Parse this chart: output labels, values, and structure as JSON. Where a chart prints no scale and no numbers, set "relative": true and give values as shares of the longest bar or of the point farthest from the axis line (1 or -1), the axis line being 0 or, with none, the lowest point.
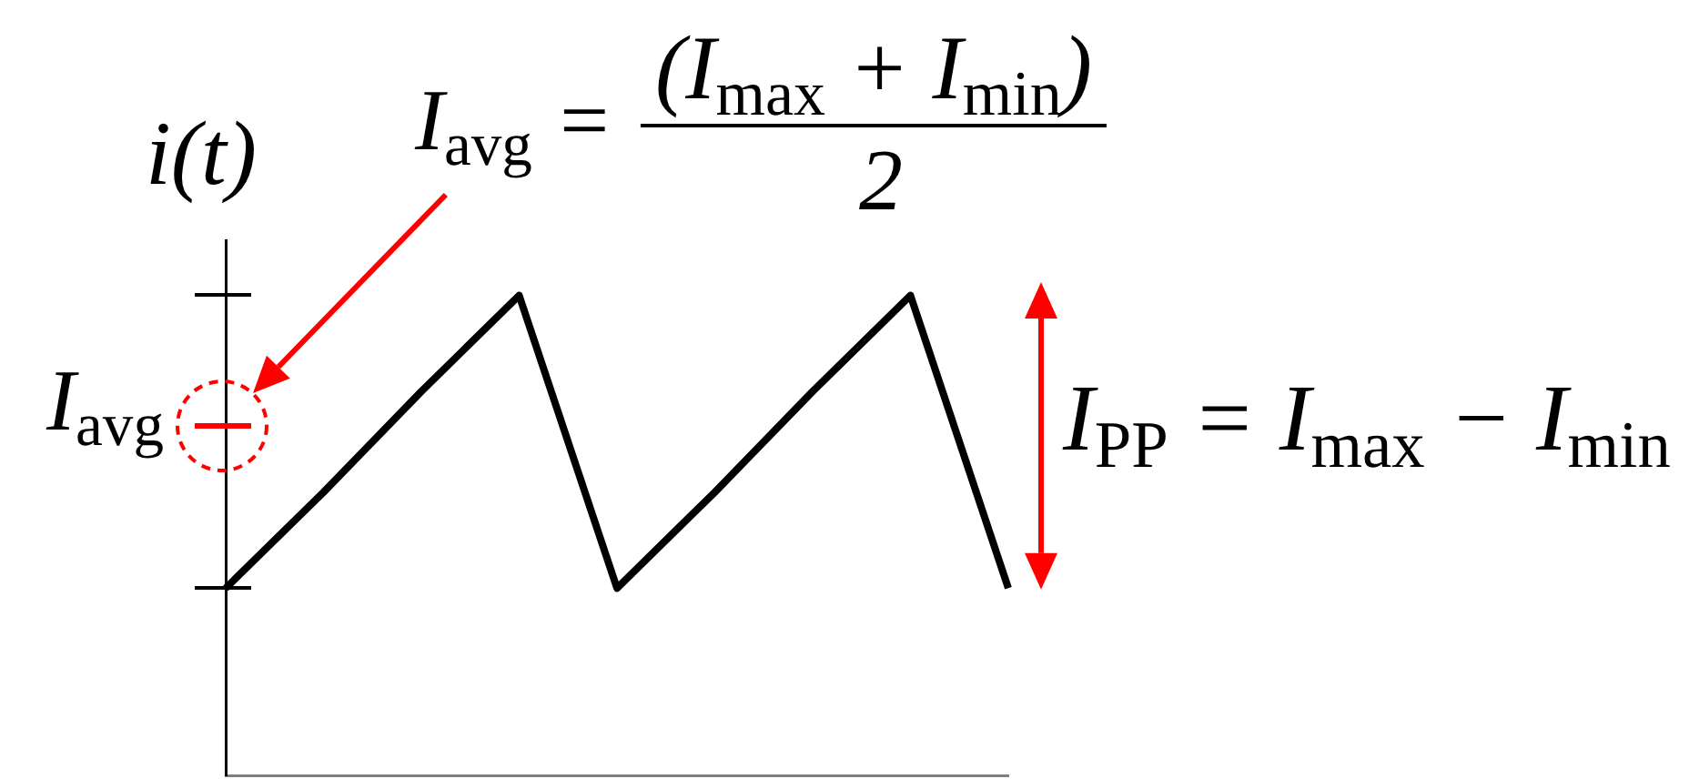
{
  "chart_data": {
    "type": "line",
    "ylabel": "i(t)",
    "relative": true,
    "annotations": [
      "I$_{avg}$ =",
      "(I$_{max}$ + I$_{min}$)",
      "2",
      "I$_{PP}$ = I$_{max}$ − I$_{min}$"
    ],
    "categories": [
      null,
      null,
      null,
      null,
      null,
      null,
      null,
      null,
      null
    ],
    "values": [
      0.39,
      0.59,
      0.8,
      1,
      0.39,
      0.59,
      0.8,
      1,
      0.39
    ],
    "color": "#000000",
    "ref_lines": [
      {
        "axis": "y",
        "value": 0.73,
        "label": "I$_{avg}$",
        "color": "#ff0000"
      }
    ]
  }
}
